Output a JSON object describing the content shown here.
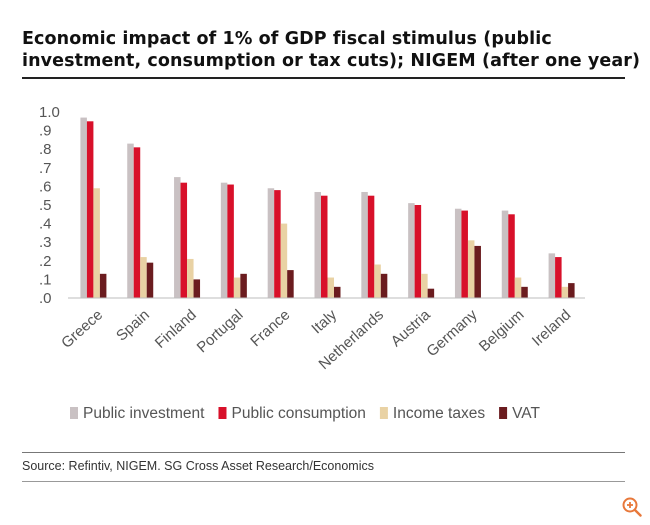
{
  "title_lines": [
    "Economic impact of 1% of GDP fiscal stimulus (public",
    "investment, consumption or tax cuts); NIGEM (after one year)"
  ],
  "source": "Source: Refintiv, NIGEM. SG Cross Asset Research/Economics",
  "chart_data": {
    "type": "bar",
    "title": "Economic impact of 1% of GDP fiscal stimulus (public investment, consumption or tax cuts); NIGEM (after one year)",
    "xlabel": "",
    "ylabel": "",
    "ylim": [
      0,
      1.0
    ],
    "yticks": [
      ".0",
      ".1",
      ".2",
      ".3",
      ".4",
      ".5",
      ".6",
      ".7",
      ".8",
      ".9",
      "1.0"
    ],
    "grid": false,
    "legend_position": "bottom",
    "categories": [
      "Greece",
      "Spain",
      "Finland",
      "Portugal",
      "France",
      "Italy",
      "Netherlands",
      "Austria",
      "Germany",
      "Belgium",
      "Ireland"
    ],
    "series": [
      {
        "name": "Public investment",
        "color": "#c9c1c3",
        "values": [
          0.97,
          0.83,
          0.65,
          0.62,
          0.59,
          0.57,
          0.57,
          0.51,
          0.48,
          0.47,
          0.24
        ]
      },
      {
        "name": "Public consumption",
        "color": "#d8102a",
        "values": [
          0.95,
          0.81,
          0.62,
          0.61,
          0.58,
          0.55,
          0.55,
          0.5,
          0.47,
          0.45,
          0.22
        ]
      },
      {
        "name": "Income taxes",
        "color": "#e9d2a4",
        "values": [
          0.59,
          0.22,
          0.21,
          0.11,
          0.4,
          0.11,
          0.18,
          0.13,
          0.31,
          0.11,
          0.06
        ]
      },
      {
        "name": "VAT",
        "color": "#6b1c1f",
        "values": [
          0.13,
          0.19,
          0.1,
          0.13,
          0.15,
          0.06,
          0.13,
          0.05,
          0.28,
          0.06,
          0.08
        ]
      }
    ]
  }
}
